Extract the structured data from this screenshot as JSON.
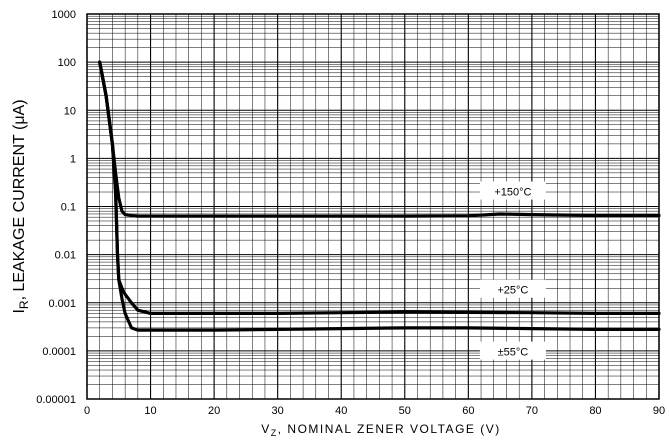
{
  "chart_data": {
    "type": "line",
    "title": "",
    "xlabel_main": "V",
    "xlabel_sub": "Z",
    "xlabel_rest": ",  NOMINAL  ZENER  VOLTAGE  (V)",
    "ylabel_main": "I",
    "ylabel_sub": "R",
    "ylabel_rest": ", LEAKAGE CURRENT (μA)",
    "xlim": [
      0,
      90
    ],
    "ylim": [
      1e-05,
      1000
    ],
    "y_scale": "log",
    "grid": true,
    "x_ticks": [
      "0",
      "10",
      "20",
      "30",
      "40",
      "50",
      "60",
      "70",
      "80",
      "90"
    ],
    "y_ticks": [
      "1000",
      "100",
      "10",
      "1",
      "0.1",
      "0.01",
      "0.001",
      "0.0001",
      "0.00001"
    ],
    "series": [
      {
        "name": "+150°C",
        "x": [
          2.0,
          3.0,
          4.0,
          4.5,
          5.0,
          5.5,
          6.0,
          7.0,
          8.0,
          10.0,
          20.0,
          30.0,
          40.0,
          50.0,
          60.0,
          65.0,
          70.0,
          80.0,
          90.0
        ],
        "y": [
          100,
          20,
          2,
          0.5,
          0.15,
          0.08,
          0.068,
          0.065,
          0.063,
          0.063,
          0.063,
          0.063,
          0.063,
          0.063,
          0.064,
          0.07,
          0.068,
          0.065,
          0.065
        ]
      },
      {
        "name": "+25°C",
        "x": [
          2.0,
          3.0,
          4.0,
          4.5,
          4.8,
          5.0,
          5.5,
          6.0,
          7.0,
          8.0,
          10.0,
          20.0,
          30.0,
          40.0,
          50.0,
          60.0,
          70.0,
          80.0,
          90.0
        ],
        "y": [
          100,
          20,
          2,
          0.2,
          0.01,
          0.003,
          0.002,
          0.0015,
          0.001,
          0.0007,
          0.0006,
          0.0006,
          0.0006,
          0.00062,
          0.00064,
          0.00063,
          0.00062,
          0.0006,
          0.0006
        ]
      },
      {
        "name": "±55°C",
        "x": [
          2.0,
          3.0,
          4.0,
          4.5,
          4.8,
          5.0,
          5.5,
          6.0,
          7.0,
          8.0,
          10.0,
          20.0,
          30.0,
          40.0,
          50.0,
          60.0,
          70.0,
          80.0,
          90.0
        ],
        "y": [
          100,
          20,
          2,
          0.2,
          0.01,
          0.003,
          0.0012,
          0.0006,
          0.0003,
          0.00027,
          0.00027,
          0.00027,
          0.00028,
          0.00029,
          0.0003,
          0.0003,
          0.00029,
          0.00028,
          0.00028
        ]
      }
    ],
    "labels": [
      "+150°C",
      "+25°C",
      "±55°C"
    ]
  }
}
